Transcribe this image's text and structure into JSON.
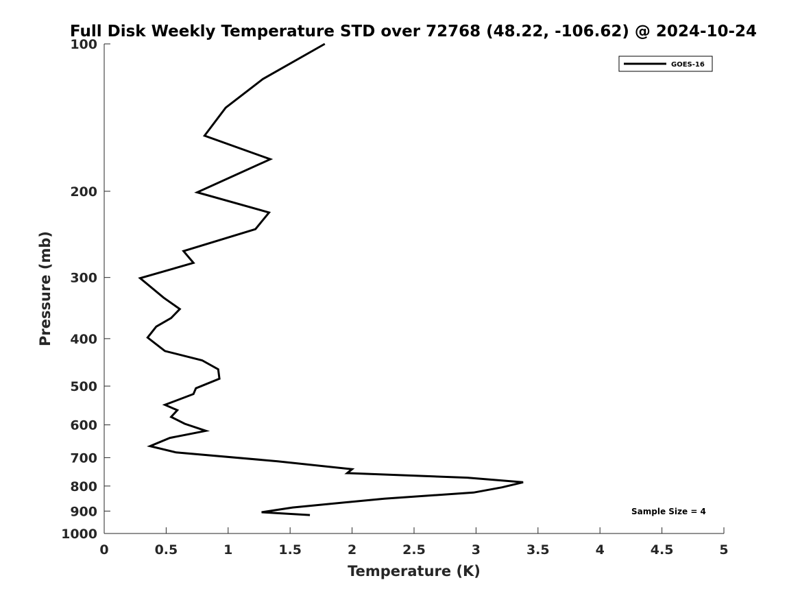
{
  "chart_data": {
    "type": "line",
    "title": "Full Disk Weekly Temperature STD over 72768 (48.22, -106.62) @ 2024-10-24",
    "xlabel": "Temperature (K)",
    "ylabel": "Pressure (mb)",
    "xlim": [
      0,
      5
    ],
    "ylim": [
      100,
      1000
    ],
    "y_scale": "log",
    "y_reversed": true,
    "grid": false,
    "legend_position": "top-right",
    "x_ticks": [
      0,
      0.5,
      1,
      1.5,
      2,
      2.5,
      3,
      3.5,
      4,
      4.5,
      5
    ],
    "x_tick_labels": [
      "0",
      "0.5",
      "1",
      "1.5",
      "2",
      "2.5",
      "3",
      "3.5",
      "4",
      "4.5",
      "5"
    ],
    "y_ticks": [
      100,
      200,
      300,
      400,
      500,
      600,
      700,
      800,
      900,
      1000
    ],
    "y_tick_labels": [
      "100",
      "200",
      "300",
      "400",
      "500",
      "600",
      "700",
      "800",
      "900",
      "1000"
    ],
    "annotation": "Sample Size = 4",
    "series": [
      {
        "name": "GOES-16",
        "color": "#000000",
        "x": [
          1.78,
          1.28,
          0.98,
          0.81,
          1.34,
          0.75,
          1.33,
          1.22,
          0.64,
          0.72,
          0.29,
          0.48,
          0.61,
          0.54,
          0.42,
          0.35,
          0.49,
          0.79,
          0.92,
          0.93,
          0.74,
          0.72,
          0.49,
          0.59,
          0.54,
          0.65,
          0.82,
          0.53,
          0.37,
          0.58,
          1.4,
          2.0,
          1.96,
          2.93,
          3.38,
          3.21,
          2.98,
          2.26,
          1.52,
          1.27,
          1.66
        ],
        "y": [
          100,
          118,
          135,
          154,
          172,
          201,
          221,
          239,
          265,
          280,
          301,
          330,
          348,
          363,
          378,
          398,
          424,
          443,
          462,
          483,
          505,
          519,
          546,
          560,
          578,
          597,
          617,
          638,
          663,
          683,
          712,
          739,
          753,
          769,
          786,
          805,
          825,
          849,
          885,
          905,
          917
        ]
      }
    ]
  }
}
